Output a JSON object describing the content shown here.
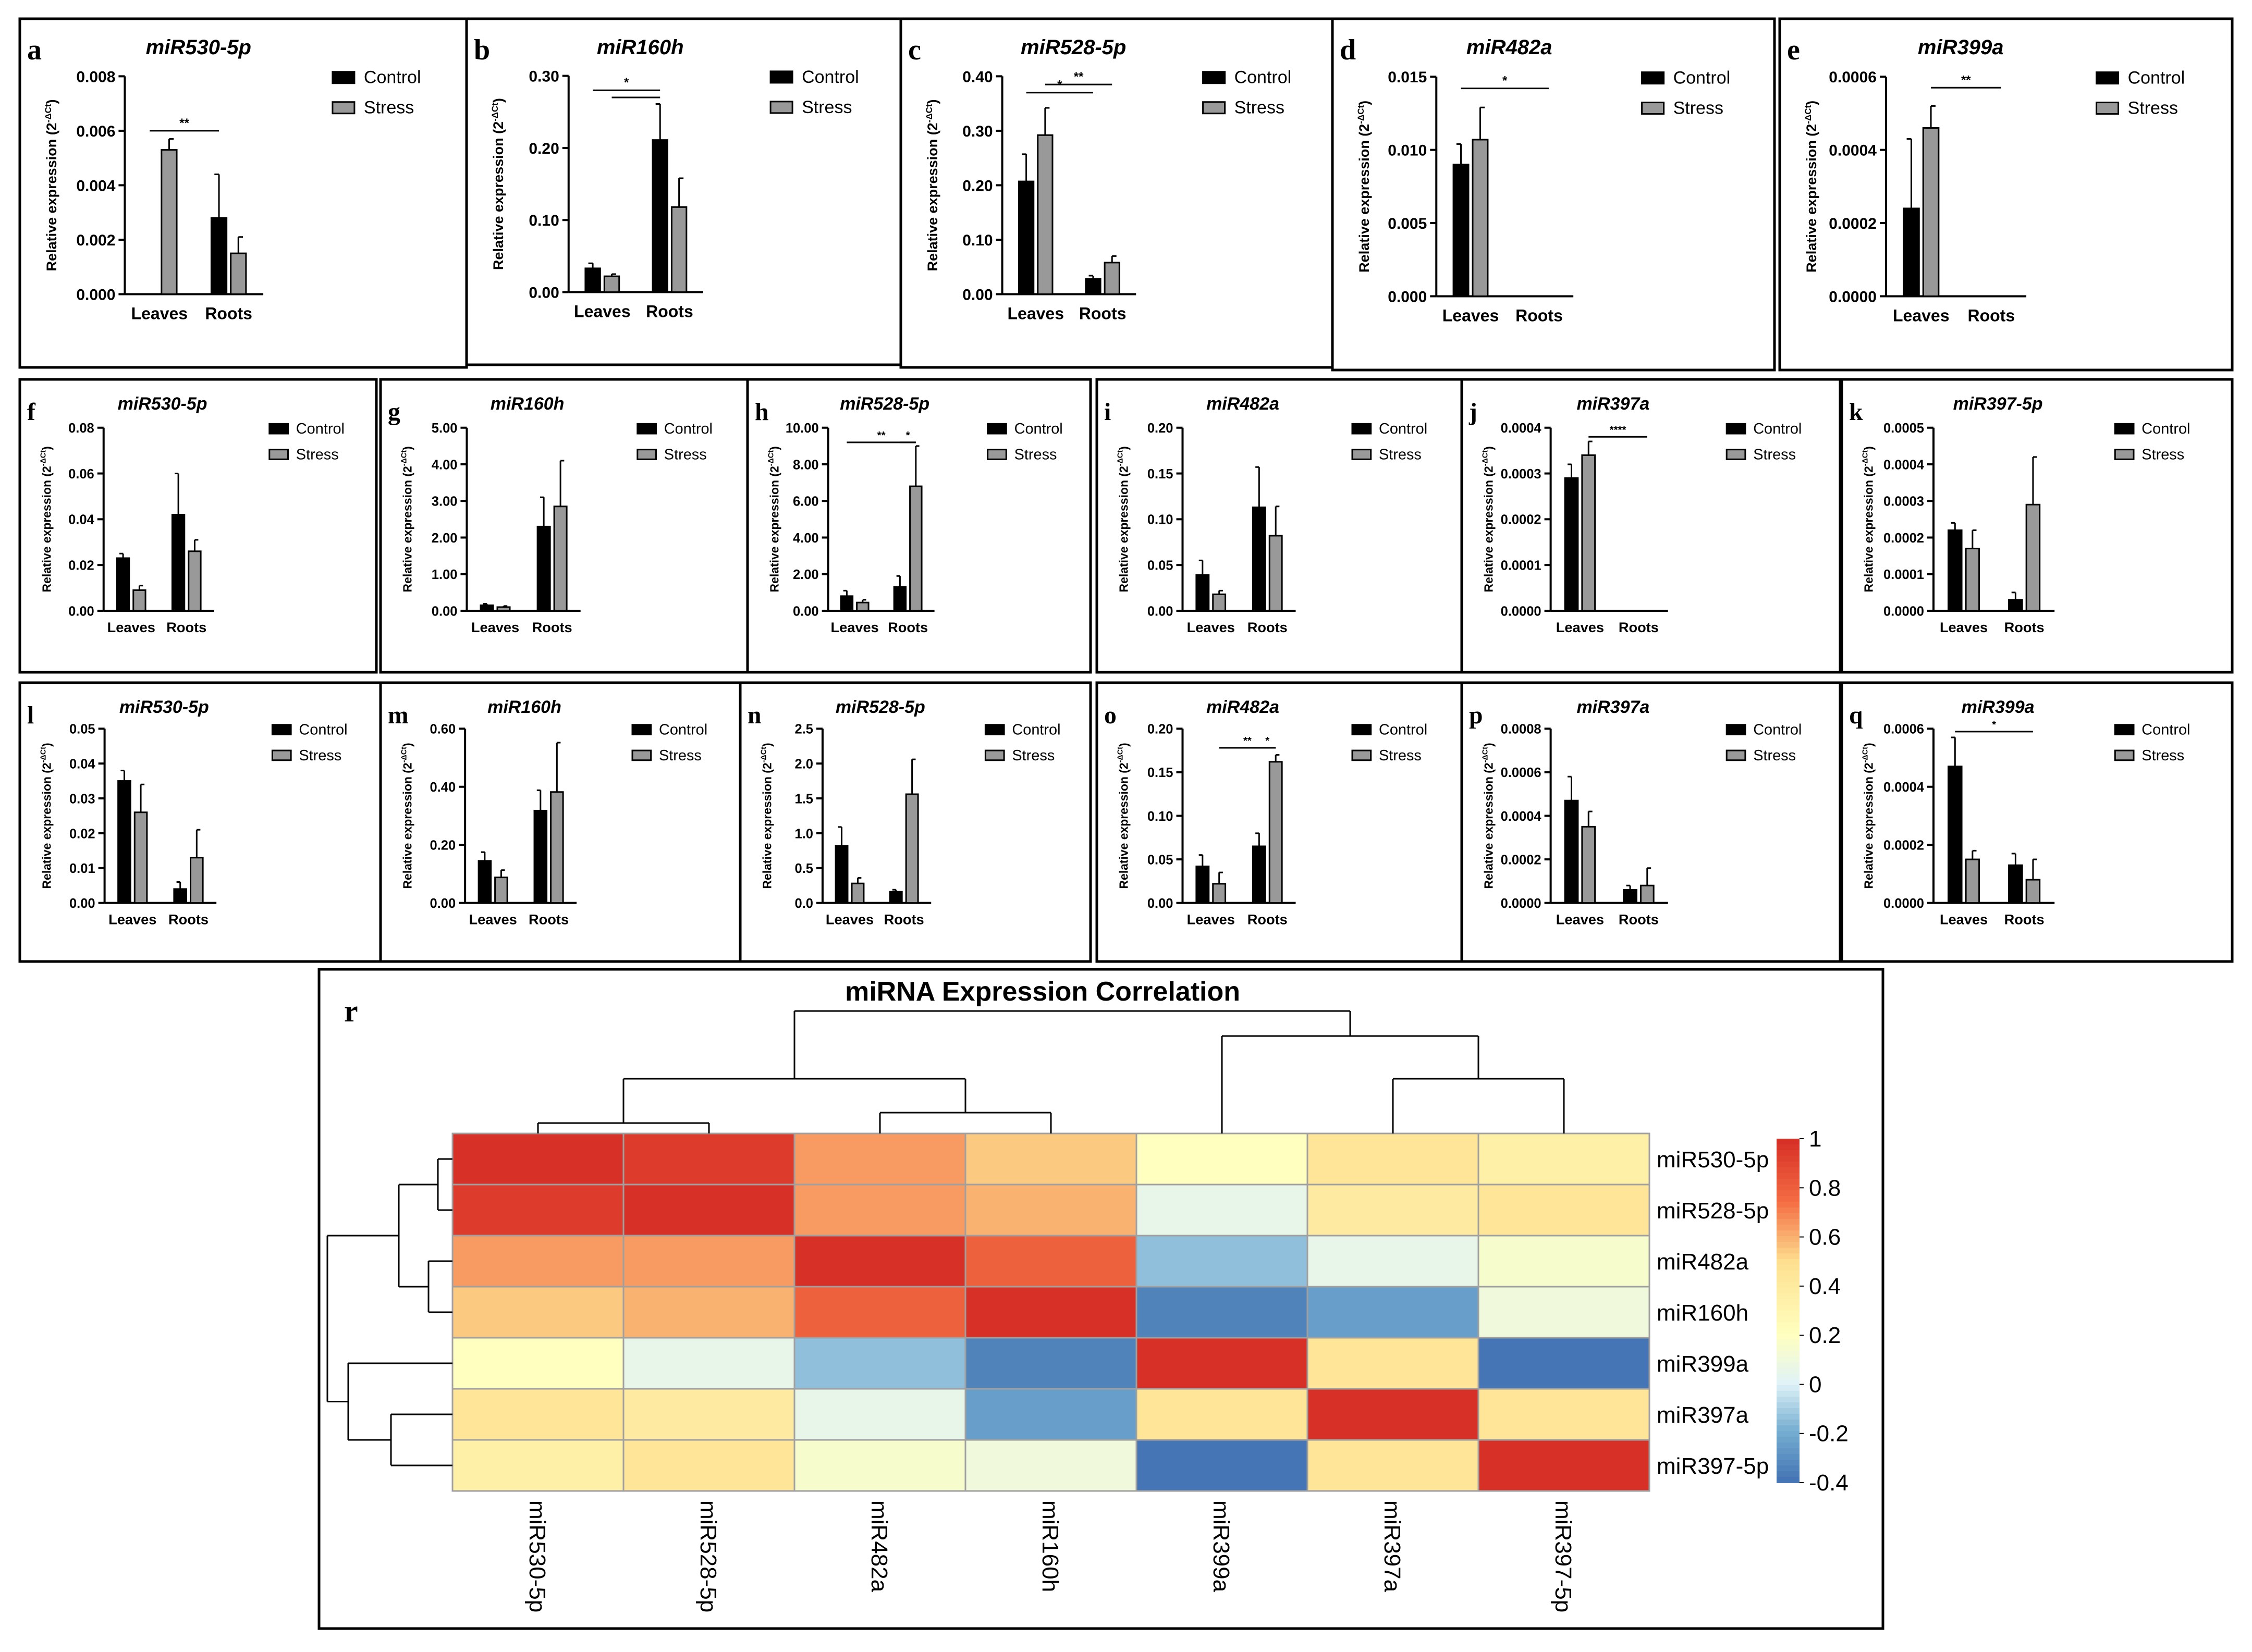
{
  "legend_labels": [
    "Control",
    "Stress"
  ],
  "colors": {
    "control": "#000000",
    "stress": "#999999"
  },
  "ylabel": "Relative expression (2",
  "ylabel_sup": "-ΔCt",
  "ylabel_end": ")",
  "chart_data": [
    {
      "letter": "a",
      "type": "bar",
      "title": "miR530-5p",
      "categories": [
        "Leaves",
        "Roots"
      ],
      "series": [
        {
          "name": "Control",
          "values": [
            0,
            0.0028
          ],
          "err": [
            0,
            0.0016
          ]
        },
        {
          "name": "Stress",
          "values": [
            0.0053,
            0.0015
          ],
          "err": [
            0.0004,
            0.0006
          ]
        }
      ],
      "ylim": [
        0,
        0.008
      ],
      "yticks": [
        "0.000",
        "0.002",
        "0.004",
        "0.006",
        "0.008"
      ],
      "sig": [
        {
          "x1": 0,
          "x2": 2,
          "y": 0.006,
          "text": "**"
        }
      ]
    },
    {
      "letter": "b",
      "type": "bar",
      "title": "miR160h",
      "categories": [
        "Leaves",
        "Roots"
      ],
      "series": [
        {
          "name": "Control",
          "values": [
            0.033,
            0.211
          ],
          "err": [
            0.007,
            0.05
          ]
        },
        {
          "name": "Stress",
          "values": [
            0.022,
            0.118
          ],
          "err": [
            0.003,
            0.04
          ]
        }
      ],
      "ylim": [
        0,
        0.3
      ],
      "yticks": [
        "0.00",
        "0.10",
        "0.20",
        "0.30"
      ],
      "sig": [
        {
          "x1": 0,
          "x2": 2,
          "y": 0.28,
          "text": "*"
        },
        {
          "x1": 1,
          "x2": 2,
          "y": 0.27,
          "text": ""
        }
      ]
    },
    {
      "letter": "c",
      "type": "bar",
      "title": "miR528-5p",
      "categories": [
        "Leaves",
        "Roots"
      ],
      "series": [
        {
          "name": "Control",
          "values": [
            0.207,
            0.028
          ],
          "err": [
            0.05,
            0.006
          ]
        },
        {
          "name": "Stress",
          "values": [
            0.292,
            0.058
          ],
          "err": [
            0.05,
            0.012
          ]
        }
      ],
      "ylim": [
        0,
        0.4
      ],
      "yticks": [
        "0.00",
        "0.10",
        "0.20",
        "0.30",
        "0.40"
      ],
      "sig": [
        {
          "x1": 0,
          "x2": 2,
          "y": 0.37,
          "text": "*"
        },
        {
          "x1": 1,
          "x2": 3,
          "y": 0.385,
          "text": "**"
        }
      ]
    },
    {
      "letter": "d",
      "type": "bar",
      "title": "miR482a",
      "categories": [
        "Leaves",
        "Roots"
      ],
      "series": [
        {
          "name": "Control",
          "values": [
            0.009,
            0
          ],
          "err": [
            0.0014,
            0
          ]
        },
        {
          "name": "Stress",
          "values": [
            0.0107,
            0
          ],
          "err": [
            0.0022,
            0
          ]
        }
      ],
      "ylim": [
        0,
        0.015
      ],
      "yticks": [
        "0.000",
        "0.005",
        "0.010",
        "0.015"
      ],
      "sig": [
        {
          "x1": 0,
          "x2": 3,
          "y": 0.0142,
          "text": "*"
        }
      ]
    },
    {
      "letter": "e",
      "type": "bar",
      "title": "miR399a",
      "categories": [
        "Leaves",
        "Roots"
      ],
      "series": [
        {
          "name": "Control",
          "values": [
            0.00024,
            0
          ],
          "err": [
            0.00019,
            0
          ]
        },
        {
          "name": "Stress",
          "values": [
            0.00046,
            0
          ],
          "err": [
            6e-05,
            0
          ]
        }
      ],
      "ylim": [
        0,
        0.0006
      ],
      "yticks": [
        "0.0000",
        "0.0002",
        "0.0004",
        "0.0006"
      ],
      "sig": [
        {
          "x1": 1,
          "x2": 3,
          "y": 0.00057,
          "text": "**"
        }
      ]
    },
    {
      "letter": "f",
      "type": "bar",
      "title": "miR530-5p",
      "categories": [
        "Leaves",
        "Roots"
      ],
      "series": [
        {
          "name": "Control",
          "values": [
            0.023,
            0.042
          ],
          "err": [
            0.002,
            0.018
          ]
        },
        {
          "name": "Stress",
          "values": [
            0.009,
            0.026
          ],
          "err": [
            0.002,
            0.005
          ]
        }
      ],
      "ylim": [
        0,
        0.08
      ],
      "yticks": [
        "0.00",
        "0.02",
        "0.04",
        "0.06",
        "0.08"
      ],
      "sig": []
    },
    {
      "letter": "g",
      "type": "bar",
      "title": "miR160h",
      "categories": [
        "Leaves",
        "Roots"
      ],
      "series": [
        {
          "name": "Control",
          "values": [
            0.15,
            2.3
          ],
          "err": [
            0.04,
            0.8
          ]
        },
        {
          "name": "Stress",
          "values": [
            0.1,
            2.85
          ],
          "err": [
            0.03,
            1.25
          ]
        }
      ],
      "ylim": [
        0,
        5
      ],
      "yticks": [
        "0.00",
        "1.00",
        "2.00",
        "3.00",
        "4.00",
        "5.00"
      ],
      "sig": []
    },
    {
      "letter": "h",
      "type": "bar",
      "title": "miR528-5p",
      "categories": [
        "Leaves",
        "Roots"
      ],
      "series": [
        {
          "name": "Control",
          "values": [
            0.8,
            1.3
          ],
          "err": [
            0.3,
            0.6
          ]
        },
        {
          "name": "Stress",
          "values": [
            0.45,
            6.8
          ],
          "err": [
            0.15,
            2.2
          ]
        }
      ],
      "ylim": [
        0,
        10
      ],
      "yticks": [
        "0.00",
        "2.00",
        "4.00",
        "6.00",
        "8.00",
        "10.00"
      ],
      "sig": [
        {
          "x1": 0,
          "x2": 3,
          "y": 9.2,
          "text": "**"
        },
        {
          "x1": 2,
          "x2": 3,
          "y": 9.2,
          "text": "*"
        }
      ]
    },
    {
      "letter": "i",
      "type": "bar",
      "title": "miR482a",
      "categories": [
        "Leaves",
        "Roots"
      ],
      "series": [
        {
          "name": "Control",
          "values": [
            0.039,
            0.113
          ],
          "err": [
            0.016,
            0.044
          ]
        },
        {
          "name": "Stress",
          "values": [
            0.018,
            0.082
          ],
          "err": [
            0.004,
            0.032
          ]
        }
      ],
      "ylim": [
        0,
        0.2
      ],
      "yticks": [
        "0.00",
        "0.05",
        "0.10",
        "0.15",
        "0.20"
      ],
      "sig": []
    },
    {
      "letter": "j",
      "type": "bar",
      "title": "miR397a",
      "categories": [
        "Leaves",
        "Roots"
      ],
      "series": [
        {
          "name": "Control",
          "values": [
            0.00029,
            0
          ],
          "err": [
            3e-05,
            0
          ]
        },
        {
          "name": "Stress",
          "values": [
            0.00034,
            0
          ],
          "err": [
            3e-05,
            0
          ]
        }
      ],
      "ylim": [
        0,
        0.0004
      ],
      "yticks": [
        "0.0000",
        "0.0001",
        "0.0002",
        "0.0003",
        "0.0004"
      ],
      "sig": [
        {
          "x1": 1,
          "x2": 3,
          "y": 0.00038,
          "text": "****"
        }
      ]
    },
    {
      "letter": "k",
      "type": "bar",
      "title": "miR397-5p",
      "categories": [
        "Leaves",
        "Roots"
      ],
      "series": [
        {
          "name": "Control",
          "values": [
            0.00022,
            3e-05
          ],
          "err": [
            2e-05,
            2e-05
          ]
        },
        {
          "name": "Stress",
          "values": [
            0.00017,
            0.00029
          ],
          "err": [
            5e-05,
            0.00013
          ]
        }
      ],
      "ylim": [
        0,
        0.0005
      ],
      "yticks": [
        "0.0000",
        "0.0001",
        "0.0002",
        "0.0003",
        "0.0004",
        "0.0005"
      ],
      "sig": []
    },
    {
      "letter": "l",
      "type": "bar",
      "title": "miR530-5p",
      "categories": [
        "Leaves",
        "Roots"
      ],
      "series": [
        {
          "name": "Control",
          "values": [
            0.035,
            0.004
          ],
          "err": [
            0.003,
            0.002
          ]
        },
        {
          "name": "Stress",
          "values": [
            0.026,
            0.013
          ],
          "err": [
            0.008,
            0.008
          ]
        }
      ],
      "ylim": [
        0,
        0.05
      ],
      "yticks": [
        "0.00",
        "0.01",
        "0.02",
        "0.03",
        "0.04",
        "0.05"
      ],
      "sig": []
    },
    {
      "letter": "m",
      "type": "bar",
      "title": "miR160h",
      "categories": [
        "Leaves",
        "Roots"
      ],
      "series": [
        {
          "name": "Control",
          "values": [
            0.145,
            0.318
          ],
          "err": [
            0.03,
            0.07
          ]
        },
        {
          "name": "Stress",
          "values": [
            0.088,
            0.382
          ],
          "err": [
            0.025,
            0.17
          ]
        }
      ],
      "ylim": [
        0,
        0.6
      ],
      "yticks": [
        "0.00",
        "0.20",
        "0.40",
        "0.60"
      ],
      "sig": []
    },
    {
      "letter": "n",
      "type": "bar",
      "title": "miR528-5p",
      "categories": [
        "Leaves",
        "Roots"
      ],
      "series": [
        {
          "name": "Control",
          "values": [
            0.82,
            0.16
          ],
          "err": [
            0.27,
            0.03
          ]
        },
        {
          "name": "Stress",
          "values": [
            0.28,
            1.56
          ],
          "err": [
            0.08,
            0.5
          ]
        }
      ],
      "ylim": [
        0,
        2.5
      ],
      "yticks": [
        "0.0",
        "0.5",
        "1.0",
        "1.5",
        "2.0",
        "2.5"
      ],
      "sig": []
    },
    {
      "letter": "o",
      "type": "bar",
      "title": "miR482a",
      "categories": [
        "Leaves",
        "Roots"
      ],
      "series": [
        {
          "name": "Control",
          "values": [
            0.042,
            0.065
          ],
          "err": [
            0.013,
            0.015
          ]
        },
        {
          "name": "Stress",
          "values": [
            0.022,
            0.162
          ],
          "err": [
            0.013,
            0.008
          ]
        }
      ],
      "ylim": [
        0,
        0.2
      ],
      "yticks": [
        "0.00",
        "0.05",
        "0.10",
        "0.15",
        "0.20"
      ],
      "sig": [
        {
          "x1": 1,
          "x2": 3,
          "y": 0.178,
          "text": "**"
        },
        {
          "x1": 2,
          "x2": 3,
          "y": 0.178,
          "text": "*"
        }
      ]
    },
    {
      "letter": "p",
      "type": "bar",
      "title": "miR397a",
      "categories": [
        "Leaves",
        "Roots"
      ],
      "series": [
        {
          "name": "Control",
          "values": [
            0.00047,
            6e-05
          ],
          "err": [
            0.00011,
            2e-05
          ]
        },
        {
          "name": "Stress",
          "values": [
            0.00035,
            8e-05
          ],
          "err": [
            7e-05,
            8e-05
          ]
        }
      ],
      "ylim": [
        0,
        0.0008
      ],
      "yticks": [
        "0.0000",
        "0.0002",
        "0.0004",
        "0.0006",
        "0.0008"
      ],
      "sig": []
    },
    {
      "letter": "q",
      "type": "bar",
      "title": "miR399a",
      "categories": [
        "Leaves",
        "Roots"
      ],
      "series": [
        {
          "name": "Control",
          "values": [
            0.00047,
            0.00013
          ],
          "err": [
            0.0001,
            4e-05
          ]
        },
        {
          "name": "Stress",
          "values": [
            0.00015,
            8e-05
          ],
          "err": [
            3e-05,
            7e-05
          ]
        }
      ],
      "ylim": [
        0,
        0.0006
      ],
      "yticks": [
        "0.0000",
        "0.0002",
        "0.0004",
        "0.0006"
      ],
      "sig": [
        {
          "x1": 0,
          "x2": 3,
          "y": 0.00059,
          "text": "*"
        }
      ]
    },
    {
      "letter": "r",
      "type": "heatmap",
      "title": "miRNA Expression Correlation",
      "rows": [
        "miR530-5p",
        "miR528-5p",
        "miR482a",
        "miR160h",
        "miR399a",
        "miR397a",
        "miR397-5p"
      ],
      "cols": [
        "miR530-5p",
        "miR528-5p",
        "miR482a",
        "miR160h",
        "miR399a",
        "miR397a",
        "miR397-5p"
      ],
      "values": [
        [
          1,
          0.95,
          0.65,
          0.55,
          0.2,
          0.45,
          0.35
        ],
        [
          0.95,
          1,
          0.65,
          0.6,
          0.05,
          0.4,
          0.45
        ],
        [
          0.65,
          0.65,
          1,
          0.8,
          -0.15,
          0.05,
          0.15
        ],
        [
          0.55,
          0.6,
          0.8,
          1,
          -0.35,
          -0.25,
          0.1
        ],
        [
          0.2,
          0.05,
          -0.15,
          -0.35,
          1,
          0.45,
          -0.4
        ],
        [
          0.45,
          0.4,
          0.05,
          -0.25,
          0.45,
          1,
          0.45
        ],
        [
          0.35,
          0.45,
          0.15,
          0.1,
          -0.4,
          0.45,
          1
        ]
      ],
      "colorbar": {
        "min": -0.4,
        "max": 1,
        "ticks": [
          "1",
          "0.8",
          "0.6",
          "0.4",
          "0.2",
          "0",
          "-0.2",
          "-0.4"
        ]
      }
    }
  ]
}
